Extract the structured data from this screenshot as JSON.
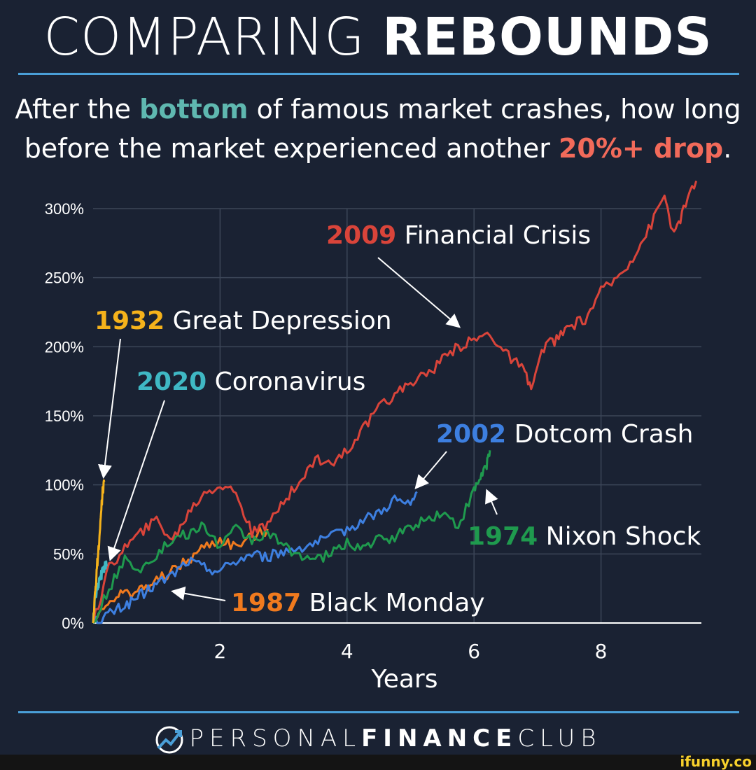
{
  "header": {
    "title_light": "COMPARING",
    "title_bold": "REBOUNDS",
    "subtitle_part1": "After the ",
    "subtitle_highlight1": "bottom",
    "subtitle_part2": " of famous market crashes, how long",
    "subtitle_part3": "before the market experienced another ",
    "subtitle_highlight2": "20%+ drop",
    "subtitle_part4": "."
  },
  "footer": {
    "brand_light1": "PERSONAL",
    "brand_bold": "FINANCE",
    "brand_light2": "CLUB",
    "logo_icon": "trending-up-icon",
    "watermark": "ifunny.co"
  },
  "colors": {
    "background": "#1a2233",
    "rule": "#4a9fd8",
    "teal": "#5fb8b0",
    "red_accent": "#f26a5a",
    "c1932": "#f5b21b",
    "c2020": "#3fb8c4",
    "c2009": "#d9443a",
    "c2002": "#3d7fe0",
    "c1974": "#1f9a4e",
    "c1987": "#f07a1e"
  },
  "chart_data": {
    "type": "line",
    "xlabel": "Years",
    "ylabel": "",
    "xlim": [
      0,
      9.5
    ],
    "ylim": [
      0,
      300
    ],
    "x_ticks": [
      2,
      4,
      6,
      8
    ],
    "x_tick_labels": [
      "2",
      "4",
      "6",
      "8"
    ],
    "y_ticks": [
      0,
      50,
      100,
      150,
      200,
      250,
      300
    ],
    "y_tick_labels": [
      "0%",
      "50%",
      "100%",
      "150%",
      "200%",
      "250%",
      "300%"
    ],
    "grid": true,
    "series": [
      {
        "name": "1932 Great Depression",
        "year": "1932",
        "label": "Great Depression",
        "color": "#f5b21b",
        "x": [
          0,
          0.03,
          0.06,
          0.09,
          0.12,
          0.15,
          0.18
        ],
        "y": [
          0,
          20,
          40,
          55,
          75,
          95,
          102
        ]
      },
      {
        "name": "2020 Coronavirus",
        "year": "2020",
        "label": "Coronavirus",
        "color": "#3fb8c4",
        "x": [
          0,
          0.03,
          0.06,
          0.1,
          0.14,
          0.18,
          0.22
        ],
        "y": [
          0,
          18,
          25,
          30,
          36,
          40,
          42
        ]
      },
      {
        "name": "2009 Financial Crisis",
        "year": "2009",
        "label": "Financial Crisis",
        "color": "#d9443a",
        "x": [
          0,
          0.25,
          0.5,
          0.75,
          1.0,
          1.25,
          1.5,
          1.75,
          2.0,
          2.25,
          2.5,
          2.75,
          3.0,
          3.25,
          3.5,
          3.75,
          4.0,
          4.25,
          4.5,
          4.75,
          5.0,
          5.25,
          5.5,
          5.75,
          6.0,
          6.25,
          6.5,
          6.75,
          6.9,
          7.1,
          7.3,
          7.5,
          7.75,
          8.0,
          8.25,
          8.5,
          8.75,
          9.0,
          9.15,
          9.3,
          9.5
        ],
        "y": [
          0,
          40,
          55,
          65,
          75,
          60,
          80,
          95,
          100,
          95,
          65,
          70,
          90,
          100,
          120,
          115,
          125,
          140,
          155,
          165,
          175,
          180,
          190,
          200,
          205,
          210,
          195,
          185,
          170,
          200,
          205,
          215,
          220,
          240,
          250,
          265,
          285,
          310,
          280,
          300,
          320
        ]
      },
      {
        "name": "2002 Dotcom Crash",
        "year": "2002",
        "label": "Dotcom Crash",
        "color": "#3d7fe0",
        "x": [
          0,
          0.2,
          0.4,
          0.6,
          0.8,
          1.0,
          1.25,
          1.5,
          1.75,
          2.0,
          2.25,
          2.5,
          2.75,
          3.0,
          3.25,
          3.5,
          3.75,
          4.0,
          4.25,
          4.5,
          4.75,
          5.0,
          5.1
        ],
        "y": [
          0,
          5,
          10,
          15,
          22,
          28,
          35,
          45,
          40,
          38,
          45,
          50,
          48,
          52,
          55,
          58,
          62,
          68,
          75,
          80,
          90,
          85,
          95
        ]
      },
      {
        "name": "1974 Nixon Shock",
        "year": "1974",
        "label": "Nixon Shock",
        "color": "#1f9a4e",
        "x": [
          0,
          0.25,
          0.5,
          0.75,
          1.0,
          1.25,
          1.5,
          1.75,
          2.0,
          2.25,
          2.5,
          2.75,
          3.0,
          3.25,
          3.5,
          3.75,
          4.0,
          4.25,
          4.5,
          4.75,
          5.0,
          5.25,
          5.5,
          5.75,
          6.0,
          6.1,
          6.2,
          6.25
        ],
        "y": [
          0,
          25,
          45,
          40,
          50,
          60,
          65,
          70,
          55,
          68,
          60,
          65,
          55,
          50,
          45,
          50,
          58,
          55,
          60,
          62,
          70,
          75,
          80,
          70,
          95,
          105,
          115,
          125
        ]
      },
      {
        "name": "1987 Black Monday",
        "year": "1987",
        "label": "Black Monday",
        "color": "#f07a1e",
        "x": [
          0,
          0.2,
          0.4,
          0.6,
          0.8,
          1.0,
          1.25,
          1.5,
          1.75,
          2.0,
          2.25,
          2.5,
          2.75
        ],
        "y": [
          0,
          15,
          20,
          22,
          25,
          30,
          38,
          45,
          55,
          60,
          55,
          62,
          68
        ]
      }
    ]
  }
}
